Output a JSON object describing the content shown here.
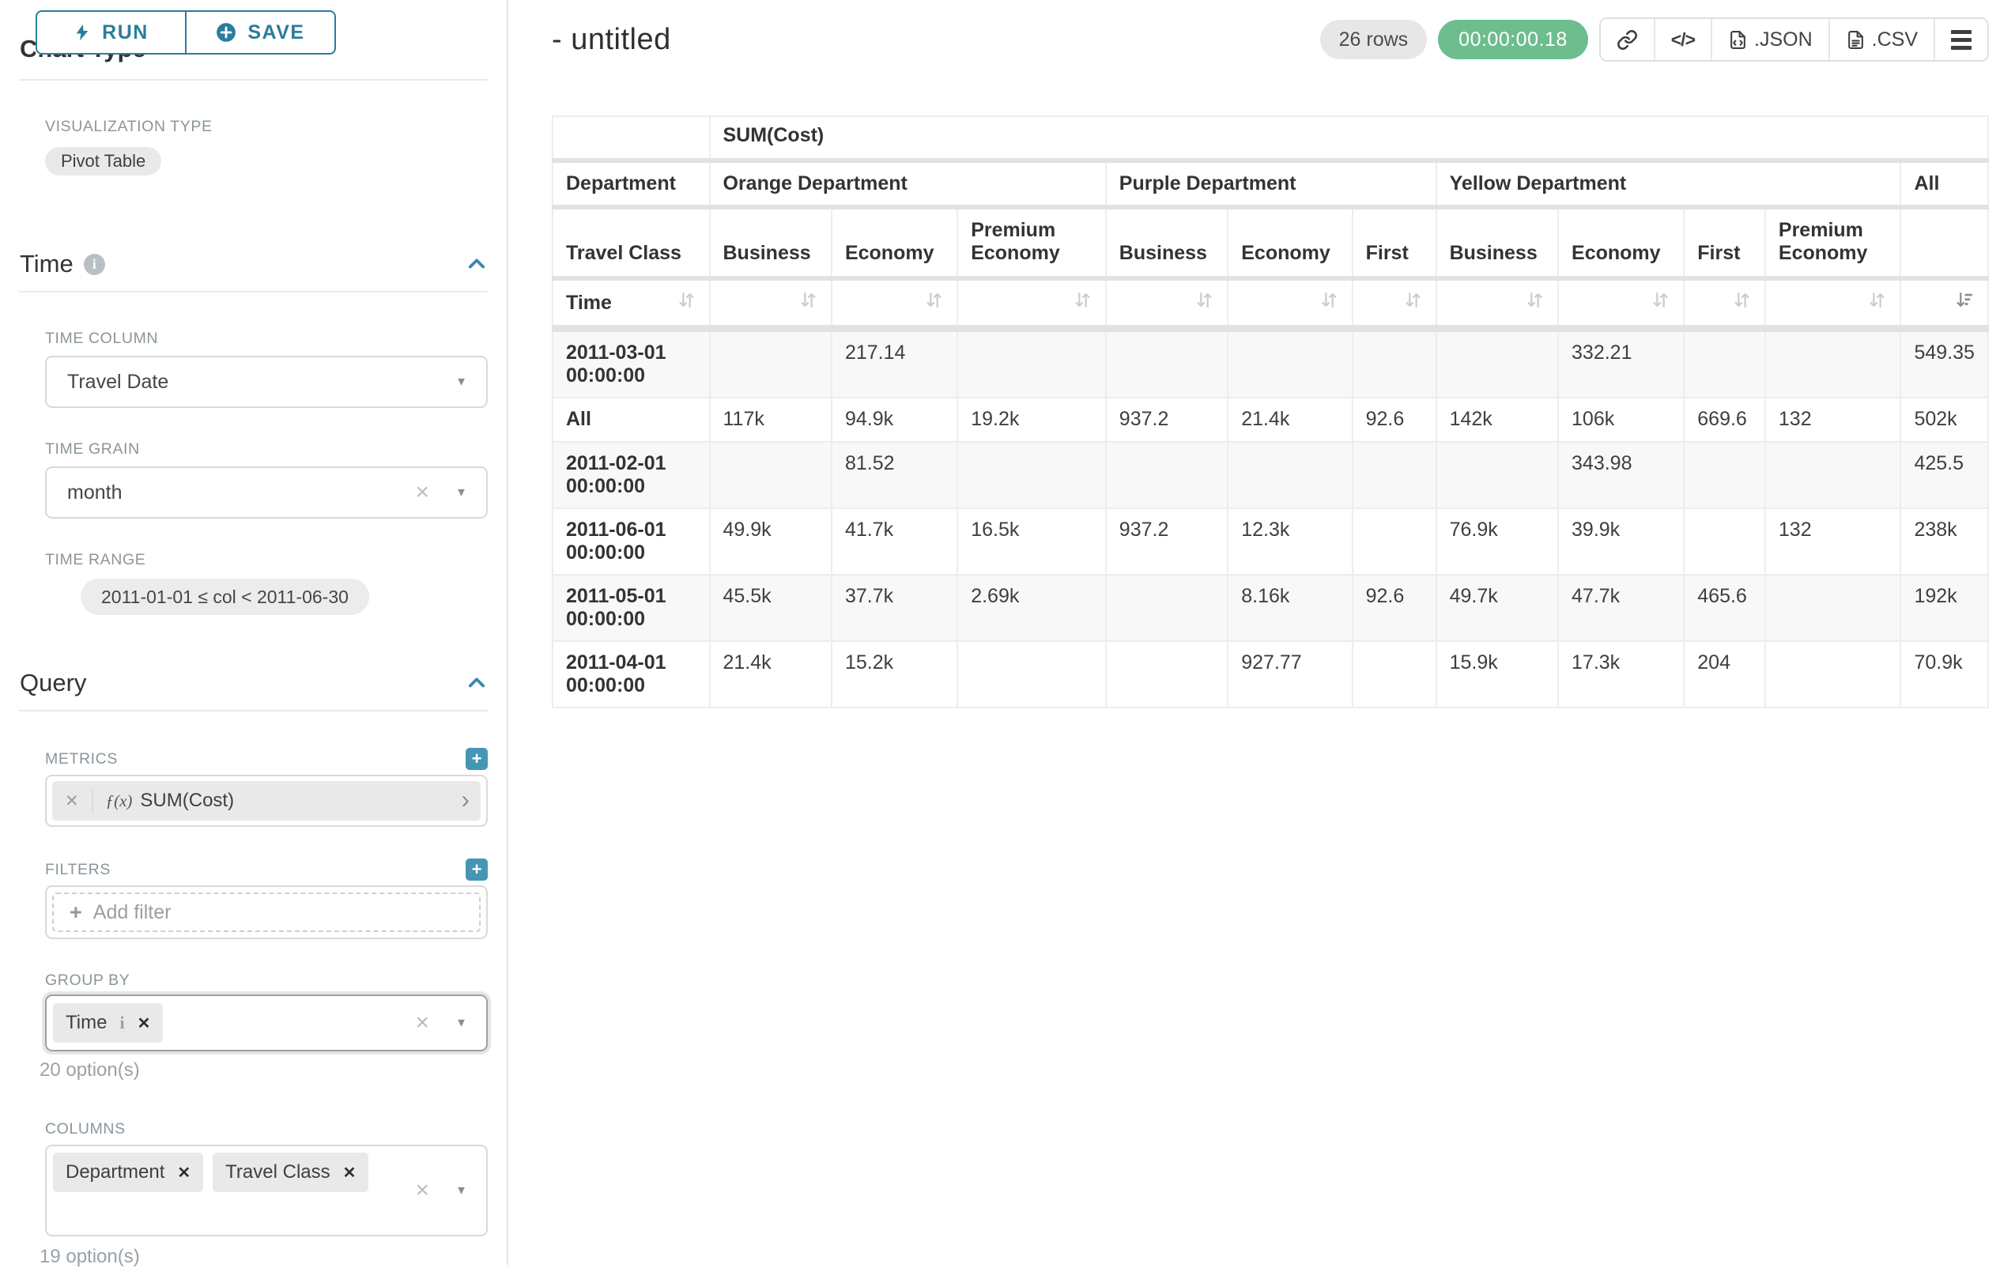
{
  "sidebar": {
    "run_label": "RUN",
    "save_label": "SAVE",
    "clipped_heading": "Chart Type",
    "visualization": {
      "label": "VISUALIZATION TYPE",
      "value": "Pivot Table"
    },
    "time_section": {
      "title": "Time",
      "time_column": {
        "label": "TIME COLUMN",
        "value": "Travel Date"
      },
      "time_grain": {
        "label": "TIME GRAIN",
        "value": "month"
      },
      "time_range": {
        "label": "TIME RANGE",
        "value": "2011-01-01 ≤ col < 2011-06-30"
      }
    },
    "query_section": {
      "title": "Query",
      "metrics": {
        "label": "METRICS",
        "fx": "ƒ(x)",
        "value": "SUM(Cost)"
      },
      "filters": {
        "label": "FILTERS",
        "placeholder": "Add filter"
      },
      "group_by": {
        "label": "GROUP BY",
        "chips": [
          "Time"
        ],
        "hint": "20 option(s)"
      },
      "columns": {
        "label": "COLUMNS",
        "chips": [
          "Department",
          "Travel Class"
        ],
        "hint": "19 option(s)"
      }
    }
  },
  "header": {
    "title": "- untitled",
    "row_count": "26 rows",
    "timer": "00:00:00.18",
    "code_icon_glyph": "</>",
    "export_json_label": ".JSON",
    "export_csv_label": ".CSV"
  },
  "colors": {
    "primary_teal": "#2a7d9c",
    "accent_blue": "#4596b5",
    "timer_green": "#6dbd8f",
    "label_gray": "#8b959b",
    "stripe_gray": "#f8f8f8"
  },
  "pivot_table": {
    "metric_header": "SUM(Cost)",
    "row_dim_label": "Department",
    "sub_dim_label": "Travel Class",
    "sort_row_label": "Time",
    "col_groups": [
      {
        "label": "Orange Department",
        "span": 3
      },
      {
        "label": "Purple Department",
        "span": 3
      },
      {
        "label": "Yellow Department",
        "span": 4
      },
      {
        "label": "All",
        "span": 1
      }
    ],
    "sub_headers": [
      "Business",
      "Economy",
      "Premium Economy",
      "Business",
      "Economy",
      "First",
      "Business",
      "Economy",
      "First",
      "Premium Economy",
      ""
    ],
    "sorted_desc_column": "All",
    "rows": [
      {
        "label": "2011-03-01 00:00:00",
        "values": [
          "",
          "217.14",
          "",
          "",
          "",
          "",
          "",
          "332.21",
          "",
          "",
          "549.35"
        ]
      },
      {
        "label": "All",
        "values": [
          "117k",
          "94.9k",
          "19.2k",
          "937.2",
          "21.4k",
          "92.6",
          "142k",
          "106k",
          "669.6",
          "132",
          "502k"
        ]
      },
      {
        "label": "2011-02-01 00:00:00",
        "values": [
          "",
          "81.52",
          "",
          "",
          "",
          "",
          "",
          "343.98",
          "",
          "",
          "425.5"
        ]
      },
      {
        "label": "2011-06-01 00:00:00",
        "values": [
          "49.9k",
          "41.7k",
          "16.5k",
          "937.2",
          "12.3k",
          "",
          "76.9k",
          "39.9k",
          "",
          "132",
          "238k"
        ]
      },
      {
        "label": "2011-05-01 00:00:00",
        "values": [
          "45.5k",
          "37.7k",
          "2.69k",
          "",
          "8.16k",
          "92.6",
          "49.7k",
          "47.7k",
          "465.6",
          "",
          "192k"
        ]
      },
      {
        "label": "2011-04-01 00:00:00",
        "values": [
          "21.4k",
          "15.2k",
          "",
          "",
          "927.77",
          "",
          "15.9k",
          "17.3k",
          "204",
          "",
          "70.9k"
        ]
      }
    ]
  }
}
